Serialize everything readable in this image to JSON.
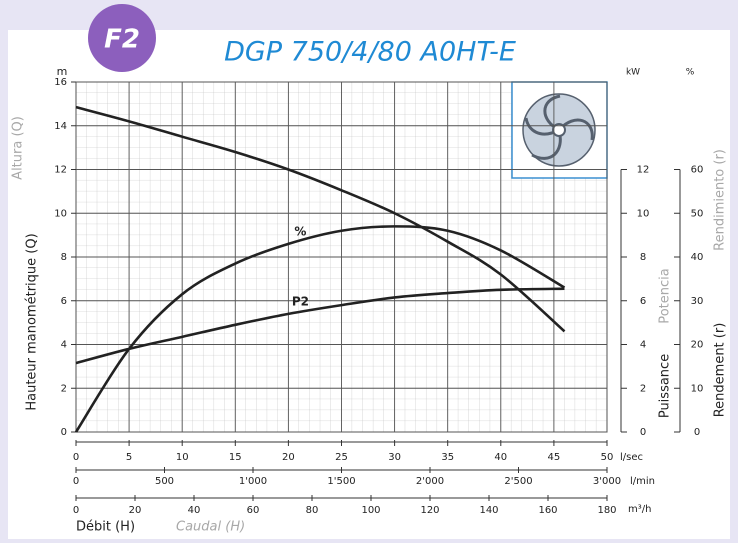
{
  "chart_data": {
    "type": "line",
    "badge": "F2",
    "title": "DGP 750/4/80 A0HT-E",
    "ylabel": "Hauteur manométrique (Q)",
    "ylabel_alt": "Altura (Q)",
    "yunit": "m",
    "y2label": "Puissance",
    "y2label_alt": "Potencia",
    "y2unit": "kW",
    "y3label": "Rendement (r)",
    "y3label_alt": "Rendimiento (r)",
    "y3unit": "%",
    "xlabel": "Débit (H)",
    "xlabel_alt": "Caudal (H)",
    "xunit": "l/sec",
    "x2unit": "l/min",
    "x3unit": "m³/h",
    "x": [
      0,
      5,
      10,
      15,
      20,
      25,
      30,
      35,
      40,
      46
    ],
    "series": [
      {
        "color": "#222222",
        "axis": "y",
        "values": [
          14.85,
          14.2,
          13.5,
          12.8,
          12.0,
          11.05,
          10.0,
          8.7,
          7.2,
          4.6
        ]
      },
      {
        "name": "%",
        "color": "#222222",
        "axis": "y3",
        "values": [
          0,
          19,
          31.5,
          38.5,
          43,
          46,
          47,
          46,
          41.5,
          33
        ]
      },
      {
        "name": "P2",
        "color": "#222222",
        "axis": "y2",
        "values": [
          3.15,
          3.8,
          4.35,
          4.9,
          5.4,
          5.8,
          6.15,
          6.35,
          6.5,
          6.55
        ]
      }
    ],
    "xlim": [
      0,
      50
    ],
    "xticks": [
      0,
      5,
      10,
      15,
      20,
      25,
      30,
      35,
      40,
      45,
      50
    ],
    "x2lim": [
      0,
      3000
    ],
    "x2ticks": [
      0,
      500,
      {
        "value": 1000,
        "label": "1'000"
      },
      {
        "value": 1500,
        "label": "1'500"
      },
      {
        "value": 2000,
        "label": "2'000"
      },
      {
        "value": 2500,
        "label": "2'500"
      },
      {
        "value": 3000,
        "label": "3'000"
      }
    ],
    "x3lim": [
      0,
      180
    ],
    "x3ticks": [
      0,
      20,
      40,
      60,
      80,
      100,
      120,
      140,
      160,
      180
    ],
    "ylim": [
      0,
      16
    ],
    "yticks": [
      0,
      2,
      4,
      6,
      8,
      10,
      12,
      14,
      16
    ],
    "y2lim": [
      0,
      16
    ],
    "y2ticks": [
      0,
      2,
      4,
      6,
      8,
      10,
      12
    ],
    "y3lim": [
      0,
      80
    ],
    "y3ticks": [
      0,
      10,
      20,
      30,
      40,
      50,
      60
    ],
    "grid": true
  }
}
